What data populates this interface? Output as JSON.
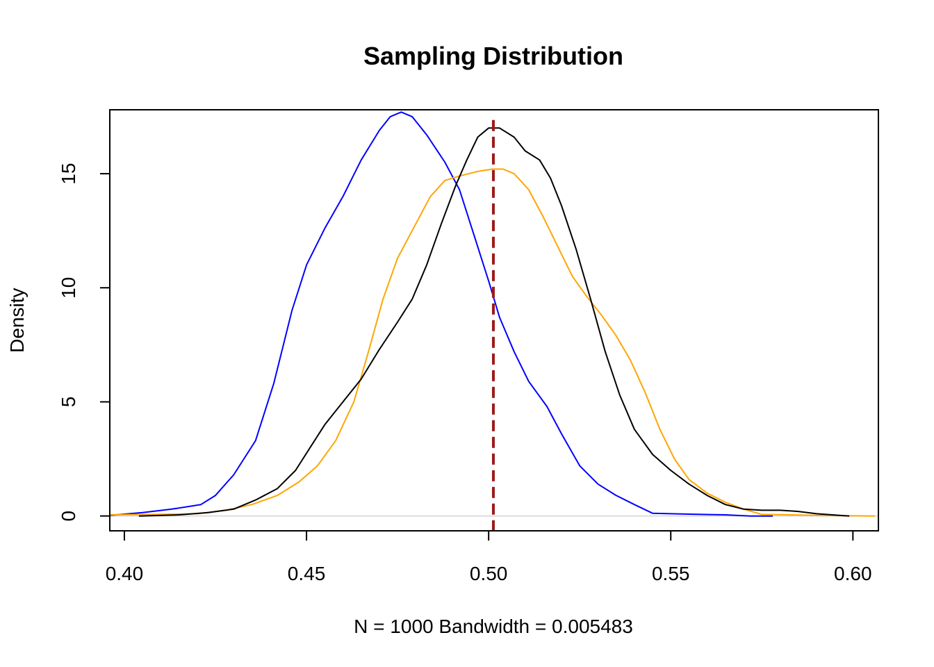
{
  "chart_data": {
    "type": "line",
    "title": "Sampling Distribution",
    "xlabel": "N = 1000   Bandwidth = 0.005483",
    "ylabel": "Density",
    "xlim": [
      0.396,
      0.607
    ],
    "ylim": [
      -0.65,
      17.8
    ],
    "x_ticks": [
      {
        "value": 0.4,
        "label": "0.40"
      },
      {
        "value": 0.45,
        "label": "0.45"
      },
      {
        "value": 0.5,
        "label": "0.50"
      },
      {
        "value": 0.55,
        "label": "0.55"
      },
      {
        "value": 0.6,
        "label": "0.60"
      }
    ],
    "y_ticks": [
      {
        "value": 0,
        "label": "0"
      },
      {
        "value": 5,
        "label": "5"
      },
      {
        "value": 10,
        "label": "10"
      },
      {
        "value": 15,
        "label": "15"
      }
    ],
    "grid": false,
    "legend": "none",
    "baseline": {
      "y": 0,
      "color": "#d3d3d3"
    },
    "series": [
      {
        "color": "#0000ff",
        "points": [
          [
            0.394,
            0.0
          ],
          [
            0.405,
            0.15
          ],
          [
            0.413,
            0.3
          ],
          [
            0.421,
            0.5
          ],
          [
            0.425,
            0.9
          ],
          [
            0.43,
            1.8
          ],
          [
            0.436,
            3.3
          ],
          [
            0.441,
            5.8
          ],
          [
            0.446,
            9.0
          ],
          [
            0.45,
            11.0
          ],
          [
            0.455,
            12.6
          ],
          [
            0.46,
            14.0
          ],
          [
            0.465,
            15.6
          ],
          [
            0.47,
            16.9
          ],
          [
            0.473,
            17.5
          ],
          [
            0.476,
            17.7
          ],
          [
            0.479,
            17.5
          ],
          [
            0.483,
            16.7
          ],
          [
            0.488,
            15.5
          ],
          [
            0.492,
            14.3
          ],
          [
            0.496,
            12.3
          ],
          [
            0.5,
            10.3
          ],
          [
            0.503,
            8.7
          ],
          [
            0.507,
            7.2
          ],
          [
            0.511,
            5.9
          ],
          [
            0.516,
            4.8
          ],
          [
            0.52,
            3.6
          ],
          [
            0.525,
            2.2
          ],
          [
            0.53,
            1.4
          ],
          [
            0.535,
            0.9
          ],
          [
            0.54,
            0.5
          ],
          [
            0.545,
            0.12
          ],
          [
            0.555,
            0.08
          ],
          [
            0.565,
            0.05
          ],
          [
            0.572,
            0.0
          ],
          [
            0.578,
            0.0
          ]
        ]
      },
      {
        "color": "#ffa500",
        "points": [
          [
            0.394,
            0.05
          ],
          [
            0.41,
            0.07
          ],
          [
            0.42,
            0.1
          ],
          [
            0.428,
            0.25
          ],
          [
            0.435,
            0.5
          ],
          [
            0.442,
            0.9
          ],
          [
            0.448,
            1.5
          ],
          [
            0.453,
            2.2
          ],
          [
            0.458,
            3.3
          ],
          [
            0.463,
            5.0
          ],
          [
            0.467,
            7.2
          ],
          [
            0.471,
            9.5
          ],
          [
            0.475,
            11.3
          ],
          [
            0.48,
            12.8
          ],
          [
            0.484,
            14.0
          ],
          [
            0.488,
            14.7
          ],
          [
            0.492,
            14.9
          ],
          [
            0.497,
            15.1
          ],
          [
            0.501,
            15.2
          ],
          [
            0.504,
            15.2
          ],
          [
            0.507,
            15.0
          ],
          [
            0.511,
            14.3
          ],
          [
            0.515,
            13.1
          ],
          [
            0.519,
            11.8
          ],
          [
            0.523,
            10.5
          ],
          [
            0.527,
            9.6
          ],
          [
            0.531,
            8.8
          ],
          [
            0.535,
            7.9
          ],
          [
            0.539,
            6.8
          ],
          [
            0.543,
            5.4
          ],
          [
            0.547,
            3.8
          ],
          [
            0.551,
            2.5
          ],
          [
            0.555,
            1.6
          ],
          [
            0.56,
            1.0
          ],
          [
            0.565,
            0.6
          ],
          [
            0.57,
            0.3
          ],
          [
            0.575,
            0.07
          ],
          [
            0.58,
            0.06
          ],
          [
            0.59,
            0.03
          ],
          [
            0.606,
            0.0
          ]
        ]
      },
      {
        "color": "#000000",
        "points": [
          [
            0.404,
            0.0
          ],
          [
            0.415,
            0.05
          ],
          [
            0.423,
            0.15
          ],
          [
            0.43,
            0.3
          ],
          [
            0.436,
            0.7
          ],
          [
            0.442,
            1.2
          ],
          [
            0.447,
            2.0
          ],
          [
            0.451,
            3.0
          ],
          [
            0.455,
            4.0
          ],
          [
            0.46,
            5.0
          ],
          [
            0.465,
            6.0
          ],
          [
            0.47,
            7.3
          ],
          [
            0.475,
            8.5
          ],
          [
            0.479,
            9.5
          ],
          [
            0.483,
            11.0
          ],
          [
            0.487,
            12.8
          ],
          [
            0.491,
            14.5
          ],
          [
            0.494,
            15.6
          ],
          [
            0.497,
            16.6
          ],
          [
            0.5,
            17.0
          ],
          [
            0.503,
            17.0
          ],
          [
            0.507,
            16.6
          ],
          [
            0.51,
            16.0
          ],
          [
            0.514,
            15.6
          ],
          [
            0.517,
            14.8
          ],
          [
            0.52,
            13.6
          ],
          [
            0.524,
            11.7
          ],
          [
            0.528,
            9.5
          ],
          [
            0.532,
            7.2
          ],
          [
            0.536,
            5.3
          ],
          [
            0.54,
            3.8
          ],
          [
            0.545,
            2.7
          ],
          [
            0.55,
            2.0
          ],
          [
            0.555,
            1.4
          ],
          [
            0.56,
            0.9
          ],
          [
            0.565,
            0.5
          ],
          [
            0.57,
            0.3
          ],
          [
            0.575,
            0.25
          ],
          [
            0.58,
            0.25
          ],
          [
            0.585,
            0.2
          ],
          [
            0.59,
            0.1
          ],
          [
            0.599,
            0.0
          ]
        ]
      }
    ],
    "vline": {
      "x": 0.5013,
      "y_top": 17.35,
      "color": "#9b1b1b",
      "style": "dashed"
    }
  }
}
